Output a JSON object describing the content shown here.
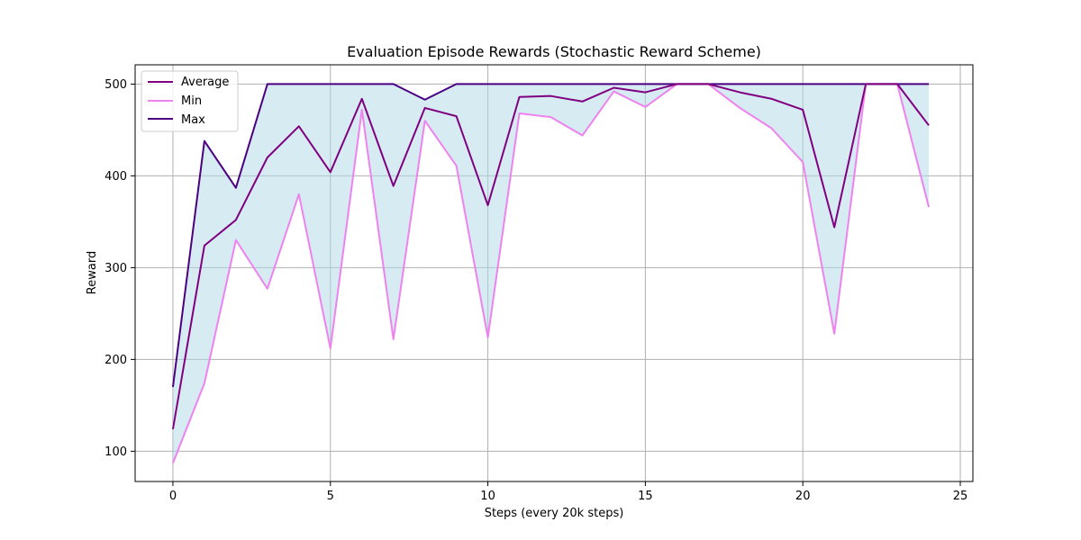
{
  "chart_data": {
    "type": "line",
    "title": "Evaluation Episode Rewards (Stochastic Reward Scheme)",
    "xlabel": "Steps (every 20k steps)",
    "ylabel": "Reward",
    "x": [
      0,
      1,
      2,
      3,
      4,
      5,
      6,
      7,
      8,
      9,
      10,
      11,
      12,
      13,
      14,
      15,
      16,
      17,
      18,
      19,
      20,
      21,
      22,
      23,
      24
    ],
    "xlim": [
      -1.2,
      25.4
    ],
    "ylim": [
      67,
      521
    ],
    "xticks": [
      0,
      5,
      10,
      15,
      20,
      25
    ],
    "yticks": [
      100,
      200,
      300,
      400,
      500
    ],
    "grid": true,
    "legend_position": "upper-left",
    "series": [
      {
        "name": "Average",
        "color": "#800080",
        "values": [
          124,
          324,
          352,
          420,
          454,
          404,
          484,
          389,
          474,
          465,
          368,
          486,
          487,
          481,
          496,
          491,
          500,
          500,
          491,
          484,
          472,
          344,
          500,
          500,
          455
        ]
      },
      {
        "name": "Min",
        "color": "#ee82ee",
        "values": [
          87,
          174,
          330,
          277,
          380,
          212,
          472,
          222,
          460,
          411,
          224,
          468,
          464,
          444,
          492,
          475,
          500,
          500,
          474,
          452,
          415,
          228,
          500,
          500,
          366
        ]
      },
      {
        "name": "Max",
        "color": "#4b0082",
        "values": [
          170,
          438,
          387,
          500,
          500,
          500,
          500,
          500,
          483,
          500,
          500,
          500,
          500,
          500,
          500,
          500,
          500,
          500,
          500,
          500,
          500,
          500,
          500,
          500,
          500
        ]
      }
    ],
    "fill_between": {
      "lower": "Min",
      "upper": "Max",
      "color": "#add8e6",
      "opacity": 0.5
    }
  }
}
